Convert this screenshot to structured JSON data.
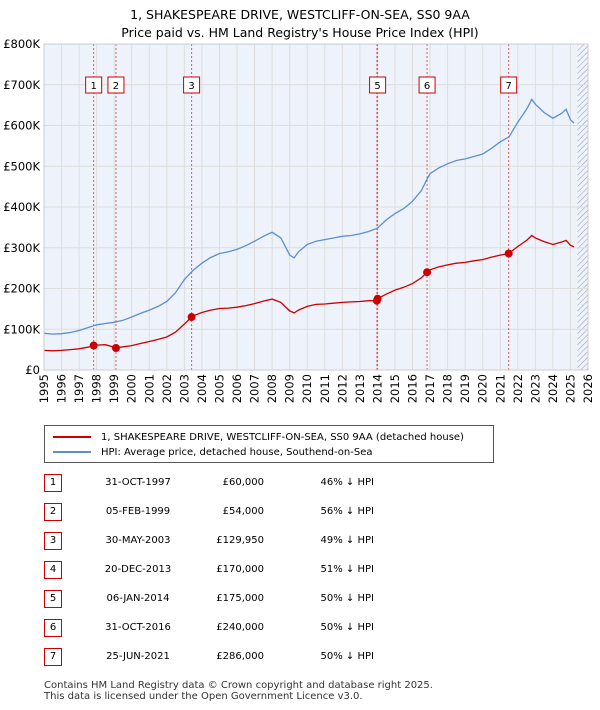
{
  "title": {
    "line1": "1, SHAKESPEARE DRIVE, WESTCLIFF-ON-SEA, SS0 9AA",
    "line2": "Price paid vs. HM Land Registry's House Price Index (HPI)"
  },
  "colors": {
    "price_line": "#cc0000",
    "hpi_line": "#5b8fd1",
    "marker_vline": "#e05a5a",
    "grid": "#dddddd",
    "plot_bg": "#eef2fa",
    "future_hatch": "#999999"
  },
  "legend": {
    "price_label": "1, SHAKESPEARE DRIVE, WESTCLIFF-ON-SEA, SS0 9AA (detached house)",
    "hpi_label": "HPI: Average price, detached house, Southend-on-Sea"
  },
  "chart_data": {
    "type": "line",
    "xlim": [
      1995,
      2026
    ],
    "ylim": [
      0,
      800000
    ],
    "xticks": [
      "1995",
      "1996",
      "1997",
      "1998",
      "1999",
      "2000",
      "2001",
      "2002",
      "2003",
      "2004",
      "2005",
      "2006",
      "2007",
      "2008",
      "2009",
      "2010",
      "2011",
      "2012",
      "2013",
      "2014",
      "2015",
      "2016",
      "2017",
      "2018",
      "2019",
      "2020",
      "2021",
      "2022",
      "2023",
      "2024",
      "2025",
      "2026"
    ],
    "yticks": [
      {
        "value": 0,
        "label": "£0"
      },
      {
        "value": 100000,
        "label": "£100K"
      },
      {
        "value": 200000,
        "label": "£200K"
      },
      {
        "value": 300000,
        "label": "£300K"
      },
      {
        "value": 400000,
        "label": "£400K"
      },
      {
        "value": 500000,
        "label": "£500K"
      },
      {
        "value": 600000,
        "label": "£600K"
      },
      {
        "value": 700000,
        "label": "£700K"
      },
      {
        "value": 800000,
        "label": "£800K"
      }
    ],
    "future_start": 2025.4,
    "series": [
      {
        "name": "HPI: Average price, detached house, Southend-on-Sea",
        "points": [
          [
            1995.0,
            90000
          ],
          [
            1995.5,
            88000
          ],
          [
            1996.0,
            89000
          ],
          [
            1996.5,
            92000
          ],
          [
            1997.0,
            97000
          ],
          [
            1997.5,
            104000
          ],
          [
            1998.0,
            111000
          ],
          [
            1998.5,
            114000
          ],
          [
            1999.0,
            117000
          ],
          [
            1999.5,
            122000
          ],
          [
            2000.0,
            130000
          ],
          [
            2000.5,
            139000
          ],
          [
            2001.0,
            147000
          ],
          [
            2001.5,
            156000
          ],
          [
            2002.0,
            168000
          ],
          [
            2002.5,
            190000
          ],
          [
            2003.0,
            222000
          ],
          [
            2003.5,
            245000
          ],
          [
            2004.0,
            262000
          ],
          [
            2004.5,
            276000
          ],
          [
            2005.0,
            286000
          ],
          [
            2005.5,
            290000
          ],
          [
            2006.0,
            296000
          ],
          [
            2006.5,
            305000
          ],
          [
            2007.0,
            316000
          ],
          [
            2007.5,
            328000
          ],
          [
            2008.0,
            338000
          ],
          [
            2008.5,
            324000
          ],
          [
            2009.0,
            282000
          ],
          [
            2009.25,
            275000
          ],
          [
            2009.5,
            290000
          ],
          [
            2010.0,
            308000
          ],
          [
            2010.5,
            316000
          ],
          [
            2011.0,
            320000
          ],
          [
            2011.5,
            324000
          ],
          [
            2012.0,
            328000
          ],
          [
            2012.5,
            330000
          ],
          [
            2013.0,
            334000
          ],
          [
            2013.5,
            340000
          ],
          [
            2014.0,
            348000
          ],
          [
            2014.5,
            368000
          ],
          [
            2015.0,
            384000
          ],
          [
            2015.5,
            396000
          ],
          [
            2016.0,
            414000
          ],
          [
            2016.5,
            440000
          ],
          [
            2016.8,
            466000
          ],
          [
            2017.0,
            482000
          ],
          [
            2017.5,
            496000
          ],
          [
            2018.0,
            506000
          ],
          [
            2018.5,
            514000
          ],
          [
            2019.0,
            518000
          ],
          [
            2019.5,
            524000
          ],
          [
            2020.0,
            530000
          ],
          [
            2020.5,
            544000
          ],
          [
            2021.0,
            560000
          ],
          [
            2021.5,
            572000
          ],
          [
            2022.0,
            608000
          ],
          [
            2022.5,
            640000
          ],
          [
            2022.8,
            664000
          ],
          [
            2023.0,
            652000
          ],
          [
            2023.5,
            632000
          ],
          [
            2024.0,
            618000
          ],
          [
            2024.5,
            630000
          ],
          [
            2024.75,
            640000
          ],
          [
            2025.0,
            614000
          ],
          [
            2025.2,
            606000
          ]
        ]
      },
      {
        "name": "1, SHAKESPEARE DRIVE, WESTCLIFF-ON-SEA, SS0 9AA (detached house)",
        "points": [
          [
            1995.0,
            48000
          ],
          [
            1995.5,
            47000
          ],
          [
            1996.0,
            48000
          ],
          [
            1996.5,
            50000
          ],
          [
            1997.0,
            52000
          ],
          [
            1997.5,
            56000
          ],
          [
            1997.83,
            60000
          ],
          [
            1998.0,
            61000
          ],
          [
            1998.5,
            62000
          ],
          [
            1999.0,
            56000
          ],
          [
            1999.1,
            54000
          ],
          [
            1999.5,
            57000
          ],
          [
            2000.0,
            60000
          ],
          [
            2000.5,
            65000
          ],
          [
            2001.0,
            70000
          ],
          [
            2001.5,
            75000
          ],
          [
            2002.0,
            81000
          ],
          [
            2002.5,
            93000
          ],
          [
            2003.0,
            113000
          ],
          [
            2003.41,
            129950
          ],
          [
            2003.5,
            133000
          ],
          [
            2004.0,
            141000
          ],
          [
            2004.5,
            147000
          ],
          [
            2005.0,
            151000
          ],
          [
            2005.5,
            152000
          ],
          [
            2006.0,
            154000
          ],
          [
            2006.5,
            158000
          ],
          [
            2007.0,
            163000
          ],
          [
            2007.5,
            169000
          ],
          [
            2008.0,
            174000
          ],
          [
            2008.5,
            166000
          ],
          [
            2009.0,
            145000
          ],
          [
            2009.25,
            140000
          ],
          [
            2009.5,
            147000
          ],
          [
            2010.0,
            156000
          ],
          [
            2010.5,
            161000
          ],
          [
            2011.0,
            162000
          ],
          [
            2011.5,
            164000
          ],
          [
            2012.0,
            166000
          ],
          [
            2012.5,
            167000
          ],
          [
            2013.0,
            168000
          ],
          [
            2013.5,
            170000
          ],
          [
            2013.97,
            170000
          ],
          [
            2014.01,
            175000
          ],
          [
            2014.5,
            186000
          ],
          [
            2015.0,
            196000
          ],
          [
            2015.5,
            203000
          ],
          [
            2016.0,
            212000
          ],
          [
            2016.5,
            226000
          ],
          [
            2016.83,
            240000
          ],
          [
            2017.0,
            246000
          ],
          [
            2017.5,
            253000
          ],
          [
            2018.0,
            258000
          ],
          [
            2018.5,
            262000
          ],
          [
            2019.0,
            264000
          ],
          [
            2019.5,
            268000
          ],
          [
            2020.0,
            271000
          ],
          [
            2020.5,
            277000
          ],
          [
            2021.0,
            282000
          ],
          [
            2021.48,
            286000
          ],
          [
            2022.0,
            303000
          ],
          [
            2022.5,
            318000
          ],
          [
            2022.8,
            330000
          ],
          [
            2023.0,
            324000
          ],
          [
            2023.5,
            315000
          ],
          [
            2024.0,
            308000
          ],
          [
            2024.5,
            314000
          ],
          [
            2024.75,
            318000
          ],
          [
            2025.0,
            306000
          ],
          [
            2025.2,
            302000
          ]
        ]
      }
    ],
    "sales": [
      {
        "num": "1",
        "x": 1997.83,
        "price": 60000
      },
      {
        "num": "2",
        "x": 1999.1,
        "price": 54000
      },
      {
        "num": "3",
        "x": 2003.41,
        "price": 129950
      },
      {
        "num": "4",
        "x": 2013.97,
        "price": 170000
      },
      {
        "num": "5",
        "x": 2014.01,
        "price": 175000
      },
      {
        "num": "6",
        "x": 2016.83,
        "price": 240000
      },
      {
        "num": "7",
        "x": 2021.48,
        "price": 286000
      }
    ]
  },
  "transactions": [
    {
      "num": "1",
      "date": "31-OCT-1997",
      "price": "£60,000",
      "hpi": "46% ↓ HPI"
    },
    {
      "num": "2",
      "date": "05-FEB-1999",
      "price": "£54,000",
      "hpi": "56% ↓ HPI"
    },
    {
      "num": "3",
      "date": "30-MAY-2003",
      "price": "£129,950",
      "hpi": "49% ↓ HPI"
    },
    {
      "num": "4",
      "date": "20-DEC-2013",
      "price": "£170,000",
      "hpi": "51% ↓ HPI"
    },
    {
      "num": "5",
      "date": "06-JAN-2014",
      "price": "£175,000",
      "hpi": "50% ↓ HPI"
    },
    {
      "num": "6",
      "date": "31-OCT-2016",
      "price": "£240,000",
      "hpi": "50% ↓ HPI"
    },
    {
      "num": "7",
      "date": "25-JUN-2021",
      "price": "£286,000",
      "hpi": "50% ↓ HPI"
    }
  ],
  "footer": {
    "line1": "Contains HM Land Registry data © Crown copyright and database right 2025.",
    "line2": "This data is licensed under the Open Government Licence v3.0."
  }
}
